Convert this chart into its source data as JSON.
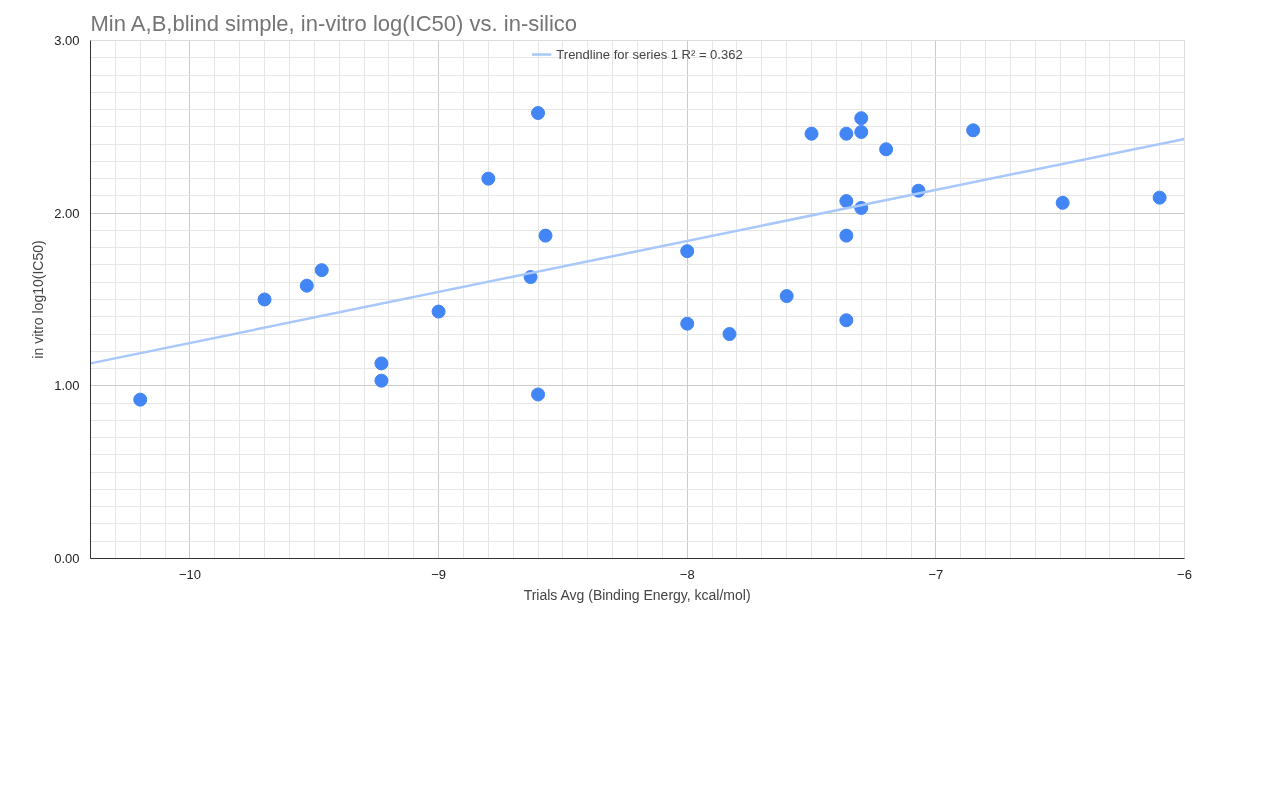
{
  "chart_data": {
    "type": "scatter",
    "title": "Min A,B,blind simple, in-vitro log(IC50) vs. in-silico",
    "xlabel": "Trials Avg (Binding Energy, kcal/mol)",
    "ylabel": "in vitro log10(IC50)",
    "xlim": [
      -10.4,
      -6
    ],
    "xticks": [
      -10,
      -9,
      -8,
      -7,
      -6
    ],
    "ylim": [
      0,
      3
    ],
    "yticks": [
      {
        "value": 0,
        "label": "0.00"
      },
      {
        "value": 1,
        "label": "1.00"
      },
      {
        "value": 2,
        "label": "2.00"
      },
      {
        "value": 3,
        "label": "3.00"
      }
    ],
    "grid": true,
    "legend": "top",
    "marker": "circle",
    "series": [
      {
        "color": "#4285f4",
        "x": [
          -10.2,
          -9.7,
          -9.53,
          -9.47,
          -9.23,
          -9.23,
          -9.0,
          -8.8,
          -8.6,
          -8.63,
          -8.57,
          -8.6,
          -8.0,
          -8.0,
          -7.83,
          -7.6,
          -7.5,
          -7.36,
          -7.3,
          -7.3,
          -7.2,
          -7.36,
          -7.3,
          -7.36,
          -7.36,
          -7.07,
          -6.85,
          -6.49,
          -6.1
        ],
        "values": [
          0.92,
          1.5,
          1.58,
          1.67,
          1.13,
          1.03,
          1.43,
          2.2,
          2.58,
          1.63,
          1.87,
          0.95,
          1.78,
          1.36,
          1.3,
          1.52,
          2.46,
          2.46,
          2.55,
          2.47,
          2.37,
          2.07,
          2.03,
          1.87,
          1.38,
          2.13,
          2.48,
          2.06,
          2.09
        ]
      },
      {
        "type": "line",
        "marker": "none",
        "name": "Trendline for series 1 R² = 0.362",
        "color": "#a8c7fa",
        "x": [
          -10.4,
          -6
        ],
        "values": [
          1.13,
          2.43
        ]
      }
    ]
  }
}
